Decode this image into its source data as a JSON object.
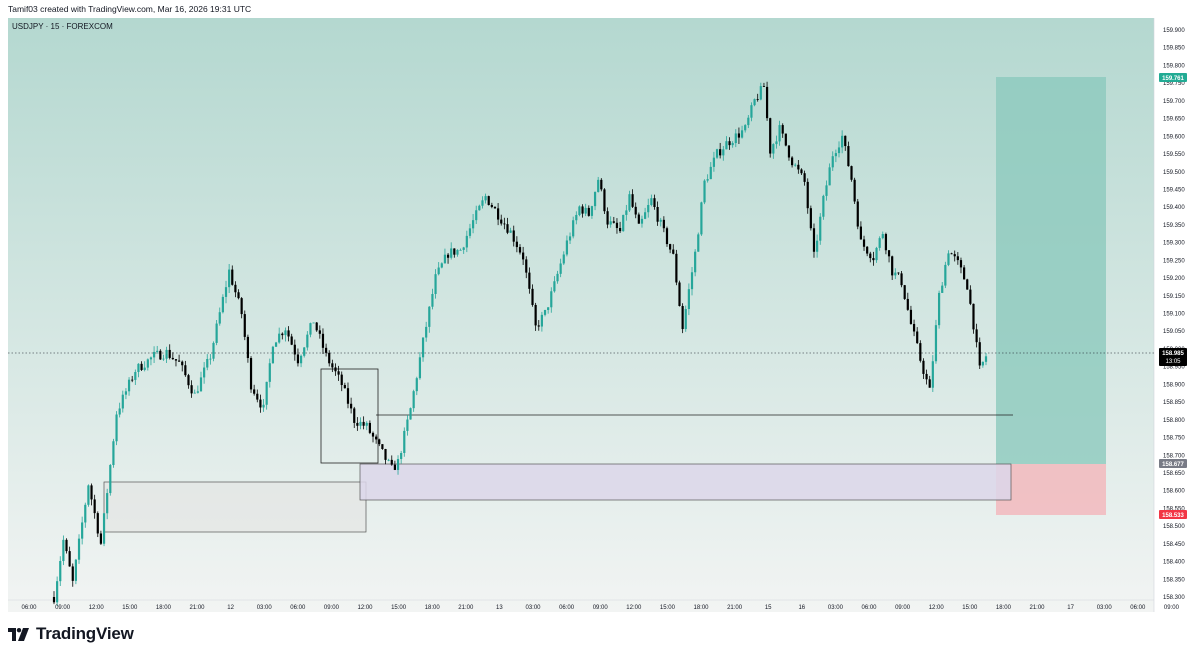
{
  "header": {
    "text": "Tamif03 created with TradingView.com, Mar 16, 2026 19:31 UTC"
  },
  "brand": {
    "name": "TradingView"
  },
  "colors": {
    "up": "#26a69a",
    "down": "#000000",
    "target_zone": "#8cc9bd",
    "stop_zone": "#f2b9bd",
    "demand_zone": "#dcd6ea",
    "bg_top": "#b4d8d0",
    "bg_bottom": "#f2f4f3",
    "target_tag": "#22ab94",
    "stop_tag": "#f23645",
    "entry_tag": "#787b86",
    "price_tag": "#000000"
  },
  "chart_data": {
    "type": "candlestick",
    "title": "USDJPY · 15 · FOREXCOM",
    "y_ticks": [
      "159.900",
      "159.850",
      "159.800",
      "159.750",
      "159.700",
      "159.650",
      "159.600",
      "159.550",
      "159.500",
      "159.450",
      "159.400",
      "159.350",
      "159.300",
      "159.250",
      "159.200",
      "159.150",
      "159.100",
      "159.050",
      "159.000",
      "158.950",
      "158.900",
      "158.850",
      "158.800",
      "158.750",
      "158.700",
      "158.650",
      "158.600",
      "158.550",
      "158.500",
      "158.450",
      "158.400",
      "158.350",
      "158.300"
    ],
    "x_ticks": [
      "06:00",
      "09:00",
      "12:00",
      "15:00",
      "18:00",
      "21:00",
      "12",
      "03:00",
      "06:00",
      "09:00",
      "12:00",
      "15:00",
      "18:00",
      "21:00",
      "13",
      "03:00",
      "06:00",
      "09:00",
      "12:00",
      "15:00",
      "18:00",
      "21:00",
      "15",
      "16",
      "03:00",
      "06:00",
      "09:00",
      "12:00",
      "15:00",
      "18:00",
      "21:00",
      "17",
      "03:00",
      "06:00",
      "09:00"
    ],
    "ylim": [
      158.28,
      159.93
    ],
    "current_price": 158.985,
    "current_price_label": "158.985",
    "countdown": "13:05",
    "target_price_label": "159.761",
    "entry_price_label": "158.677",
    "stop_price_label": "158.533",
    "position": {
      "target": 159.761,
      "entry": 158.677,
      "stop": 158.533
    },
    "zones": [
      {
        "name": "demand-zone-lower",
        "top": 158.635,
        "bottom": 158.49
      },
      {
        "name": "demand-zone-upper",
        "top": 158.677,
        "bottom": 158.575
      },
      {
        "name": "consolidation-box",
        "top": 158.945,
        "bottom": 158.68
      }
    ],
    "level_line": 158.81,
    "path": [
      [
        0,
        158.3
      ],
      [
        3,
        158.46
      ],
      [
        6,
        158.34
      ],
      [
        11,
        158.62
      ],
      [
        15,
        158.45
      ],
      [
        20,
        158.82
      ],
      [
        26,
        158.94
      ],
      [
        32,
        158.98
      ],
      [
        36,
        158.99
      ],
      [
        40,
        158.96
      ],
      [
        45,
        158.87
      ],
      [
        50,
        158.98
      ],
      [
        56,
        159.22
      ],
      [
        60,
        159.1
      ],
      [
        63,
        158.9
      ],
      [
        67,
        158.83
      ],
      [
        70,
        159.02
      ],
      [
        74,
        159.06
      ],
      [
        78,
        158.97
      ],
      [
        83,
        159.08
      ],
      [
        87,
        158.98
      ],
      [
        92,
        158.9
      ],
      [
        96,
        158.8
      ],
      [
        100,
        158.78
      ],
      [
        104,
        158.72
      ],
      [
        108,
        158.66
      ],
      [
        110,
        158.68
      ],
      [
        114,
        158.83
      ],
      [
        118,
        159.02
      ],
      [
        122,
        159.2
      ],
      [
        126,
        159.27
      ],
      [
        130,
        159.28
      ],
      [
        134,
        159.36
      ],
      [
        138,
        159.43
      ],
      [
        142,
        159.38
      ],
      [
        146,
        159.33
      ],
      [
        150,
        159.26
      ],
      [
        154,
        159.06
      ],
      [
        157,
        159.1
      ],
      [
        160,
        159.18
      ],
      [
        164,
        159.3
      ],
      [
        168,
        159.4
      ],
      [
        171,
        159.38
      ],
      [
        174,
        159.48
      ],
      [
        177,
        159.36
      ],
      [
        181,
        159.33
      ],
      [
        184,
        159.43
      ],
      [
        187,
        159.34
      ],
      [
        191,
        159.42
      ],
      [
        194,
        159.35
      ],
      [
        198,
        159.26
      ],
      [
        201,
        159.06
      ],
      [
        205,
        159.27
      ],
      [
        208,
        159.47
      ],
      [
        212,
        159.55
      ],
      [
        215,
        159.58
      ],
      [
        218,
        159.6
      ],
      [
        221,
        159.62
      ],
      [
        224,
        159.7
      ],
      [
        227,
        159.74
      ],
      [
        229,
        159.56
      ],
      [
        232,
        159.62
      ],
      [
        236,
        159.53
      ],
      [
        240,
        159.47
      ],
      [
        243,
        159.26
      ],
      [
        246,
        159.42
      ],
      [
        249,
        159.55
      ],
      [
        252,
        159.6
      ],
      [
        255,
        159.48
      ],
      [
        258,
        159.3
      ],
      [
        262,
        159.26
      ],
      [
        265,
        159.33
      ],
      [
        268,
        159.22
      ],
      [
        271,
        159.19
      ],
      [
        274,
        159.07
      ],
      [
        277,
        158.97
      ],
      [
        280,
        158.88
      ],
      [
        283,
        159.15
      ],
      [
        286,
        159.28
      ],
      [
        289,
        159.24
      ],
      [
        292,
        159.18
      ],
      [
        294,
        159.07
      ],
      [
        296,
        158.94
      ],
      [
        298,
        158.98
      ]
    ],
    "bar_count": 299
  }
}
